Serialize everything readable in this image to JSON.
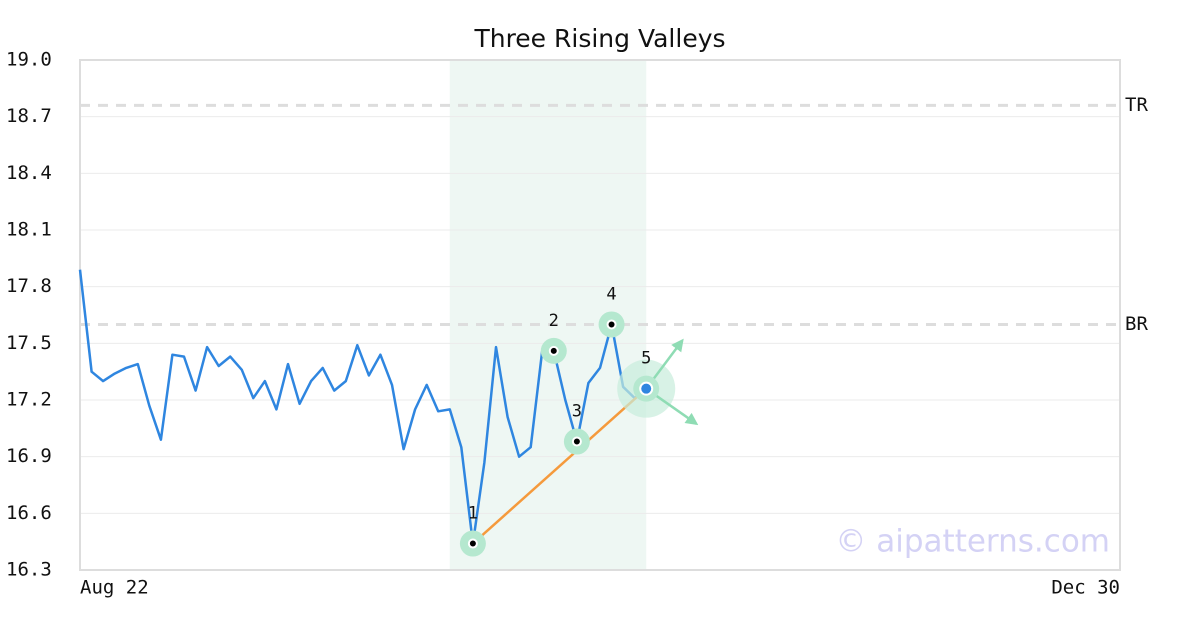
{
  "chart_data": {
    "type": "line",
    "title": "Three Rising Valleys",
    "categories": [
      "Aug 22",
      null,
      null,
      null,
      null,
      null,
      null,
      null,
      null,
      null,
      null,
      null,
      null,
      null,
      null,
      null,
      null,
      null,
      null,
      null,
      null,
      null,
      null,
      null,
      null,
      null,
      null,
      null,
      null,
      null,
      null,
      null,
      null,
      null,
      null,
      null,
      null,
      null,
      null,
      null,
      null,
      null,
      null,
      null,
      null,
      null,
      null,
      null,
      null,
      null,
      null,
      null,
      null,
      null,
      null,
      null,
      null,
      null,
      null,
      null,
      null,
      null,
      null,
      null,
      null,
      null,
      null,
      null,
      null,
      null,
      null,
      null,
      null,
      null,
      null,
      null,
      null,
      null,
      null,
      null,
      null,
      null,
      null,
      null,
      null,
      null,
      null,
      null,
      null,
      null,
      "Dec 30"
    ],
    "values": [
      17.89,
      17.35,
      17.3,
      17.34,
      17.37,
      17.39,
      17.17,
      16.99,
      17.44,
      17.43,
      17.25,
      17.48,
      17.38,
      17.43,
      17.36,
      17.21,
      17.3,
      17.15,
      17.39,
      17.18,
      17.3,
      17.37,
      17.25,
      17.3,
      17.49,
      17.33,
      17.44,
      17.28,
      16.94,
      17.15,
      17.28,
      17.14,
      17.15,
      16.95,
      16.44,
      16.87,
      17.48,
      17.11,
      16.9,
      16.95,
      17.46,
      17.46,
      17.2,
      16.98,
      17.29,
      17.37,
      17.6,
      17.27,
      17.21,
      17.26,
      null,
      null,
      null,
      null,
      null,
      null,
      null,
      null,
      null,
      null,
      null,
      null,
      null,
      null,
      null,
      null,
      null,
      null,
      null,
      null,
      null,
      null,
      null,
      null,
      null,
      null,
      null,
      null,
      null,
      null,
      null,
      null,
      null,
      null,
      null,
      null,
      null,
      null,
      null,
      null,
      null
    ],
    "color": "#2f86e0",
    "ylim": [
      16.3,
      19.0
    ],
    "yticks": [
      16.3,
      16.6,
      16.9,
      17.2,
      17.5,
      17.8,
      18.1,
      18.4,
      18.7,
      {
        "value": 19.0,
        "label": "19.0"
      }
    ],
    "grid": true,
    "levels": [
      {
        "label": "TR",
        "value": 18.76
      },
      {
        "label": "BR",
        "value": 17.6
      }
    ],
    "highlight": [
      32,
      49
    ],
    "pattern": {
      "labels": [
        "1",
        "2",
        "3",
        "4",
        "5"
      ],
      "x": [
        34,
        41,
        43,
        46,
        49
      ],
      "values": [
        16.44,
        17.46,
        16.98,
        17.6,
        17.26
      ]
    },
    "watermark": "© aipatterns.com"
  }
}
